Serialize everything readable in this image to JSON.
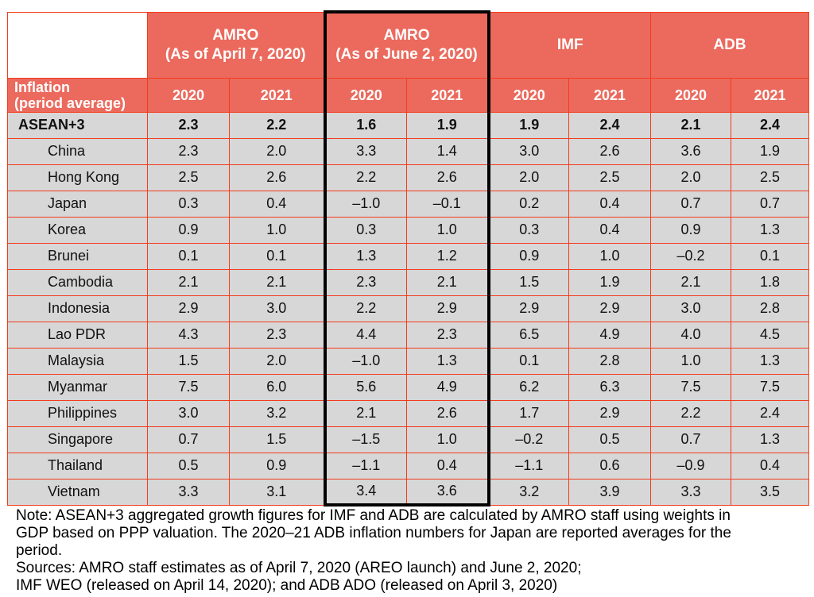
{
  "colors": {
    "header_fill": "#eb6a5d",
    "grid_line": "#f53b1d",
    "row_fill": "#d7d7d7",
    "highlight_border": "#000000",
    "header_text": "#ffffff",
    "body_text": "#111111"
  },
  "table": {
    "corner": {
      "line1": "Inflation",
      "line2": "(period average)"
    },
    "groups": [
      {
        "line1": "AMRO",
        "line2": "(As of April 7, 2020)"
      },
      {
        "line1": "AMRO",
        "line2": "(As of June 2, 2020)",
        "highlighted": true
      },
      {
        "line1": "IMF",
        "line2": ""
      },
      {
        "line1": "ADB",
        "line2": ""
      }
    ],
    "year_columns": [
      "2020",
      "2021",
      "2020",
      "2021",
      "2020",
      "2021",
      "2020",
      "2021"
    ],
    "rows": [
      {
        "label": "ASEAN+3",
        "bold": true,
        "values": [
          "2.3",
          "2.2",
          "1.6",
          "1.9",
          "1.9",
          "2.4",
          "2.1",
          "2.4"
        ]
      },
      {
        "label": "China",
        "values": [
          "2.3",
          "2.0",
          "3.3",
          "1.4",
          "3.0",
          "2.6",
          "3.6",
          "1.9"
        ]
      },
      {
        "label": "Hong Kong",
        "values": [
          "2.5",
          "2.6",
          "2.2",
          "2.6",
          "2.0",
          "2.5",
          "2.0",
          "2.5"
        ]
      },
      {
        "label": "Japan",
        "values": [
          "0.3",
          "0.4",
          "–1.0",
          "–0.1",
          "0.2",
          "0.4",
          "0.7",
          "0.7"
        ]
      },
      {
        "label": "Korea",
        "values": [
          "0.9",
          "1.0",
          "0.3",
          "1.0",
          "0.3",
          "0.4",
          "0.9",
          "1.3"
        ]
      },
      {
        "label": "Brunei",
        "values": [
          "0.1",
          "0.1",
          "1.3",
          "1.2",
          "0.9",
          "1.0",
          "–0.2",
          "0.1"
        ]
      },
      {
        "label": "Cambodia",
        "values": [
          "2.1",
          "2.1",
          "2.3",
          "2.1",
          "1.5",
          "1.9",
          "2.1",
          "1.8"
        ]
      },
      {
        "label": "Indonesia",
        "values": [
          "2.9",
          "3.0",
          "2.2",
          "2.9",
          "2.9",
          "2.9",
          "3.0",
          "2.8"
        ]
      },
      {
        "label": "Lao PDR",
        "values": [
          "4.3",
          "2.3",
          "4.4",
          "2.3",
          "6.5",
          "4.9",
          "4.0",
          "4.5"
        ]
      },
      {
        "label": "Malaysia",
        "values": [
          "1.5",
          "2.0",
          "–1.0",
          "1.3",
          "0.1",
          "2.8",
          "1.0",
          "1.3"
        ]
      },
      {
        "label": "Myanmar",
        "values": [
          "7.5",
          "6.0",
          "5.6",
          "4.9",
          "6.2",
          "6.3",
          "7.5",
          "7.5"
        ]
      },
      {
        "label": "Philippines",
        "values": [
          "3.0",
          "3.2",
          "2.1",
          "2.6",
          "1.7",
          "2.9",
          "2.2",
          "2.4"
        ]
      },
      {
        "label": "Singapore",
        "values": [
          "0.7",
          "1.5",
          "–1.5",
          "1.0",
          "–0.2",
          "0.5",
          "0.7",
          "1.3"
        ]
      },
      {
        "label": "Thailand",
        "values": [
          "0.5",
          "0.9",
          "–1.1",
          "0.4",
          "–1.1",
          "0.6",
          "–0.9",
          "0.4"
        ]
      },
      {
        "label": "Vietnam",
        "values": [
          "3.3",
          "3.1",
          "3.4",
          "3.6",
          "3.2",
          "3.9",
          "3.3",
          "3.5"
        ]
      }
    ]
  },
  "notes": {
    "lines": [
      "Note: ASEAN+3 aggregated growth figures for IMF and ADB are calculated by AMRO staff using weights in",
      "GDP based on PPP valuation. The 2020–21 ADB inflation numbers for Japan are reported averages for the",
      "period.",
      "Sources: AMRO staff estimates as of April 7, 2020 (AREO launch) and June 2, 2020;",
      "IMF WEO (released on April 14, 2020); and ADB ADO (released on April 3, 2020)"
    ]
  }
}
